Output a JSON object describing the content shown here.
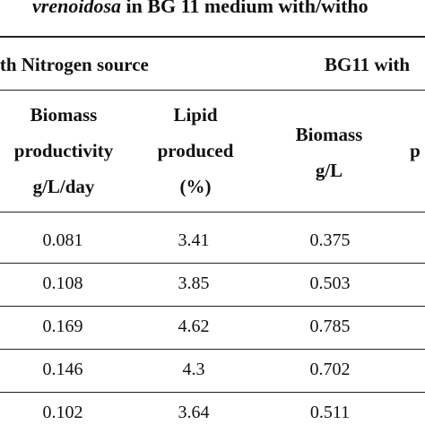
{
  "title": {
    "italic_part": "vrenoidosa",
    "rest": " in BG 11 medium with/witho"
  },
  "groups": {
    "left": "ith Nitrogen source",
    "right": "BG11 with"
  },
  "headers": {
    "biomass_productivity": [
      "Biomass",
      "productivity",
      "g/L/day"
    ],
    "lipid_produced": [
      "Lipid",
      "produced",
      "(%)"
    ],
    "biomass_gl": [
      "Biomass",
      "g/L"
    ],
    "partial": "p"
  },
  "rows": [
    {
      "biomass_productivity": "0.081",
      "lipid_produced": "3.41",
      "biomass_gl": "0.375"
    },
    {
      "biomass_productivity": "0.108",
      "lipid_produced": "3.85",
      "biomass_gl": "0.503"
    },
    {
      "biomass_productivity": "0.169",
      "lipid_produced": "4.62",
      "biomass_gl": "0.785"
    },
    {
      "biomass_productivity": "0.146",
      "lipid_produced": "4.3",
      "biomass_gl": "0.702"
    },
    {
      "biomass_productivity": "0.102",
      "lipid_produced": "3.64",
      "biomass_gl": "0.511"
    }
  ]
}
